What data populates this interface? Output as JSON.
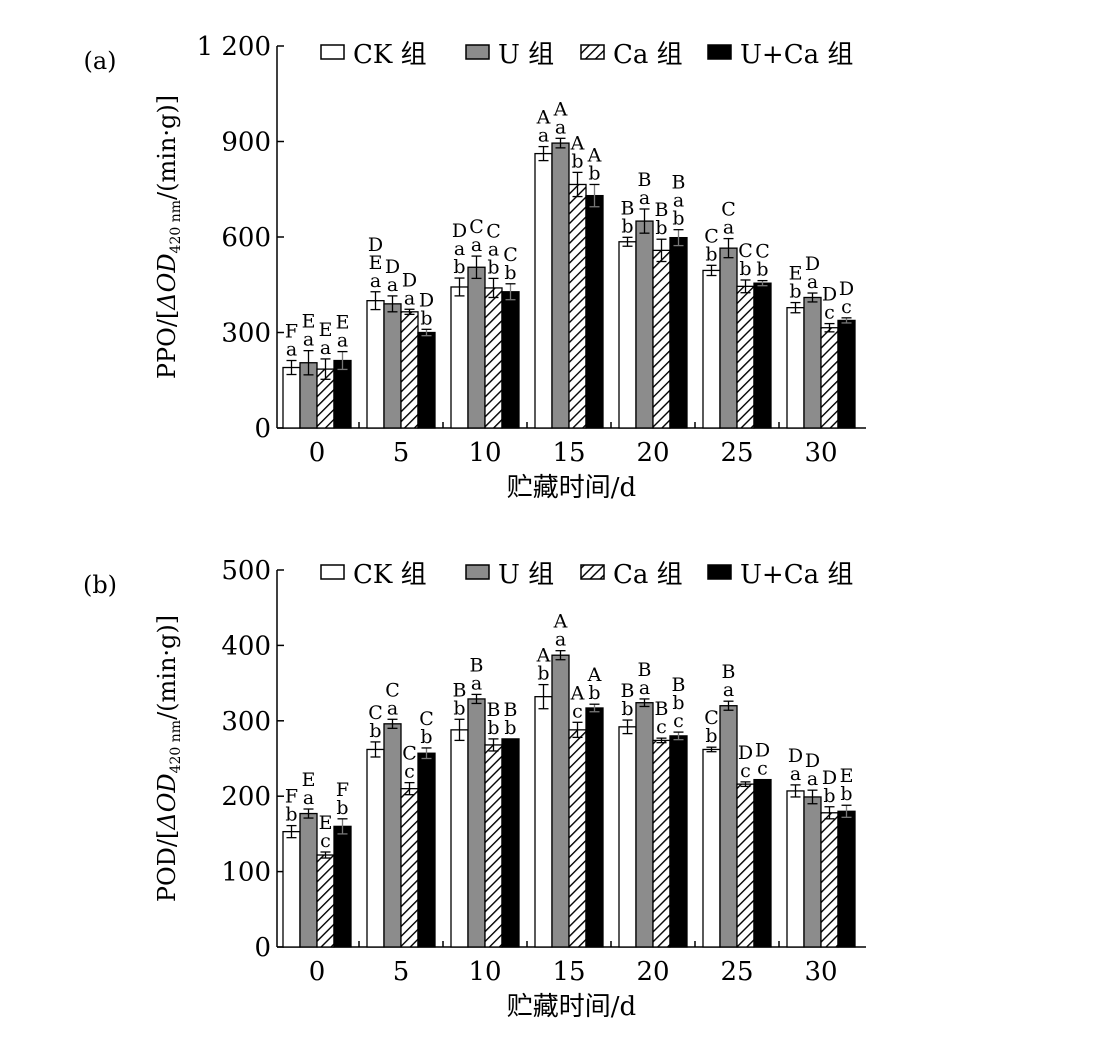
{
  "legend": [
    {
      "label": "CK 组",
      "pattern": "white"
    },
    {
      "label": "U 组",
      "pattern": "gray"
    },
    {
      "label": "Ca 组",
      "pattern": "hatch"
    },
    {
      "label": "U+Ca 组",
      "pattern": "black"
    }
  ],
  "colors": {
    "gray": "#8c8c8c",
    "black": "#000000",
    "white": "#ffffff"
  },
  "chart_data": [
    {
      "type": "bar",
      "panel": "(a)",
      "ylabel": "PPO/[ΔOD420 nm/(min·g)]",
      "ylabel_parts": {
        "pre": "PPO/[",
        "od": "ΔOD",
        "sub": "420 nm",
        "post": "/(min·g)]"
      },
      "xlabel": "贮藏时间/d",
      "categories": [
        "0",
        "5",
        "10",
        "15",
        "20",
        "25",
        "30"
      ],
      "ylim": [
        0,
        1200
      ],
      "yticks": [
        0,
        300,
        600,
        900,
        1200
      ],
      "ytick_labels": [
        "0",
        "300",
        "600",
        "900",
        "1 200"
      ],
      "series": [
        {
          "name": "CK 组",
          "values": [
            190,
            400,
            443,
            862,
            585,
            495,
            378
          ],
          "errors": [
            22,
            28,
            28,
            22,
            14,
            16,
            16
          ],
          "labels": [
            [
              "F",
              "a"
            ],
            [
              "D",
              "E",
              "a"
            ],
            [
              "D",
              "a",
              "b"
            ],
            [
              "A",
              "a"
            ],
            [
              "B",
              "b"
            ],
            [
              "C",
              "b"
            ],
            [
              "E",
              "b"
            ]
          ]
        },
        {
          "name": "U 组",
          "values": [
            205,
            390,
            505,
            895,
            650,
            565,
            410
          ],
          "errors": [
            38,
            25,
            35,
            15,
            38,
            30,
            14
          ],
          "labels": [
            [
              "E",
              "a"
            ],
            [
              "D",
              "a"
            ],
            [
              "C",
              "a"
            ],
            [
              "A",
              "a"
            ],
            [
              "B",
              "a"
            ],
            [
              "C",
              "a"
            ],
            [
              "D",
              "a"
            ]
          ]
        },
        {
          "name": "Ca 组",
          "values": [
            185,
            365,
            440,
            765,
            558,
            445,
            315
          ],
          "errors": [
            32,
            8,
            30,
            38,
            35,
            20,
            13
          ],
          "labels": [
            [
              "E",
              "a"
            ],
            [
              "D",
              "a"
            ],
            [
              "C",
              "a",
              "b"
            ],
            [
              "A",
              "b"
            ],
            [
              "B",
              "b"
            ],
            [
              "C",
              "b"
            ],
            [
              "D",
              "c"
            ]
          ]
        },
        {
          "name": "U+Ca 组",
          "values": [
            212,
            300,
            428,
            730,
            598,
            455,
            338
          ],
          "errors": [
            28,
            10,
            25,
            35,
            25,
            8,
            8
          ],
          "labels": [
            [
              "E",
              "a"
            ],
            [
              "D",
              "b"
            ],
            [
              "C",
              "b"
            ],
            [
              "A",
              "b"
            ],
            [
              "B",
              "a",
              "b"
            ],
            [
              "C",
              "b"
            ],
            [
              "D",
              "c"
            ]
          ]
        }
      ]
    },
    {
      "type": "bar",
      "panel": "(b)",
      "ylabel": "POD/[ΔOD420 nm/(min·g)]",
      "ylabel_parts": {
        "pre": "POD/[",
        "od": "ΔOD",
        "sub": "420 nm",
        "post": "/(min·g)]"
      },
      "xlabel": "贮藏时间/d",
      "categories": [
        "0",
        "5",
        "10",
        "15",
        "20",
        "25",
        "30"
      ],
      "ylim": [
        0,
        500
      ],
      "yticks": [
        0,
        100,
        200,
        300,
        400,
        500
      ],
      "ytick_labels": [
        "0",
        "100",
        "200",
        "300",
        "400",
        "500"
      ],
      "series": [
        {
          "name": "CK 组",
          "values": [
            153,
            262,
            288,
            332,
            292,
            262,
            207
          ],
          "errors": [
            8,
            10,
            14,
            16,
            9,
            3,
            8
          ],
          "labels": [
            [
              "F",
              "b"
            ],
            [
              "C",
              "b"
            ],
            [
              "B",
              "b"
            ],
            [
              "A",
              "b"
            ],
            [
              "B",
              "b"
            ],
            [
              "C",
              "b"
            ],
            [
              "D",
              "a"
            ]
          ]
        },
        {
          "name": "U 组",
          "values": [
            177,
            296,
            329,
            387,
            324,
            320,
            199
          ],
          "errors": [
            6,
            6,
            6,
            6,
            5,
            6,
            9
          ],
          "labels": [
            [
              "E",
              "a"
            ],
            [
              "C",
              "a"
            ],
            [
              "B",
              "a"
            ],
            [
              "A",
              "a"
            ],
            [
              "B",
              "a"
            ],
            [
              "B",
              "a"
            ],
            [
              "D",
              "a"
            ]
          ]
        },
        {
          "name": "Ca 组",
          "values": [
            122,
            210,
            268,
            288,
            274,
            216,
            178
          ],
          "errors": [
            4,
            8,
            8,
            10,
            3,
            3,
            8
          ],
          "labels": [
            [
              "E",
              "c"
            ],
            [
              "C",
              "c"
            ],
            [
              "B",
              "b"
            ],
            [
              "A",
              "c"
            ],
            [
              "B",
              "c"
            ],
            [
              "D",
              "c"
            ],
            [
              "D",
              "b"
            ]
          ]
        },
        {
          "name": "U+Ca 组",
          "values": [
            160,
            257,
            276,
            317,
            280,
            222,
            180
          ],
          "errors": [
            10,
            7,
            0,
            5,
            5,
            0,
            8
          ],
          "labels": [
            [
              "F",
              "b"
            ],
            [
              "C",
              "b"
            ],
            [
              "B",
              "b"
            ],
            [
              "A",
              "b"
            ],
            [
              "B",
              "b",
              "c"
            ],
            [
              "D",
              "c"
            ],
            [
              "E",
              "b"
            ]
          ]
        }
      ]
    }
  ]
}
